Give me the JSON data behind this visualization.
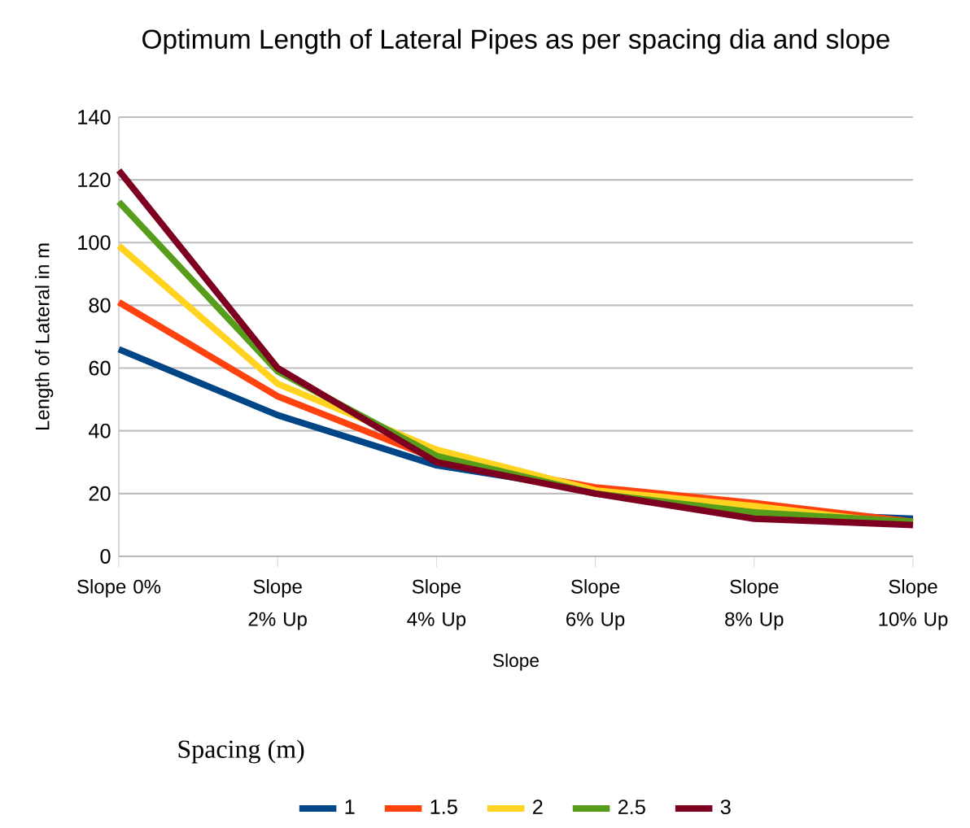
{
  "chart_data": {
    "type": "line",
    "title": "Optimum Length of Lateral Pipes as per spacing dia and slope",
    "xlabel": "Slope",
    "ylabel": "Length of Lateral in m",
    "legend_title": "Spacing (m)",
    "categories": [
      "Slope 0%",
      "Slope 2% Up",
      "Slope 4% Up",
      "Slope 6% Up",
      "Slope 8% Up",
      "Slope 10% Up"
    ],
    "series": [
      {
        "name": "1",
        "color": "#004586",
        "values": [
          66,
          45,
          29,
          21,
          14,
          12
        ]
      },
      {
        "name": "1.5",
        "color": "#ff420e",
        "values": [
          81,
          51,
          31,
          22,
          17,
          11
        ]
      },
      {
        "name": "2",
        "color": "#ffd320",
        "values": [
          99,
          55,
          34,
          21,
          16,
          10
        ]
      },
      {
        "name": "2.5",
        "color": "#579d1c",
        "values": [
          113,
          59,
          32,
          20,
          14,
          11
        ]
      },
      {
        "name": "3",
        "color": "#7e0021",
        "values": [
          123,
          60,
          30,
          20,
          12,
          10
        ]
      }
    ],
    "ylim": [
      0,
      140
    ],
    "yticks": [
      0,
      20,
      40,
      60,
      80,
      100,
      120,
      140
    ],
    "grid": "y",
    "legend": "bottom",
    "marker": "none",
    "line_style": "solid"
  }
}
